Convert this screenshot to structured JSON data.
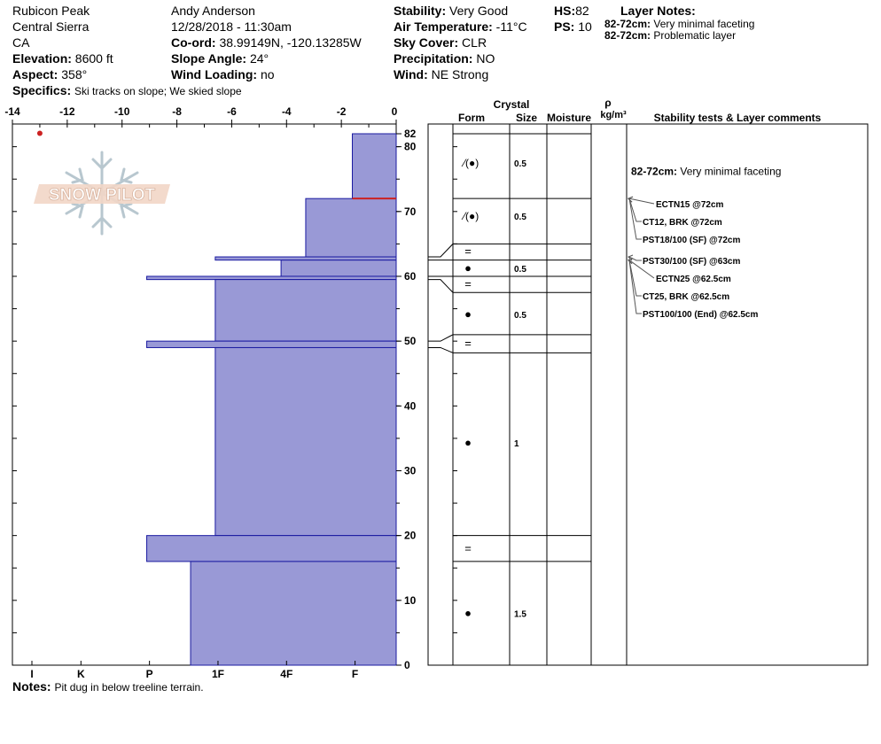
{
  "site": {
    "location": "Rubicon Peak",
    "range": "Central Sierra",
    "state": "CA",
    "elevation_label": "Elevation:",
    "elevation": "8600 ft",
    "aspect_label": "Aspect:",
    "aspect": "358°",
    "specifics_label": "Specifics:",
    "specifics": "Ski tracks on slope; We skied slope"
  },
  "observer": {
    "name": "Andy Anderson",
    "datetime": "12/28/2018 - 11:30am",
    "coord_label": "Co-ord:",
    "coord": "38.99149N, -120.13285W",
    "slope_label": "Slope Angle:",
    "slope": "24°",
    "wind_loading_label": "Wind Loading:",
    "wind_loading": "no"
  },
  "conditions": {
    "stability_label": "Stability:",
    "stability": "Very Good",
    "air_temp_label": "Air Temperature:",
    "air_temp": "-11°C",
    "sky_label": "Sky Cover:",
    "sky": "CLR",
    "precip_label": "Precipitation:",
    "precip": "NO",
    "wind_label": "Wind:",
    "wind": "NE Strong"
  },
  "depths": {
    "hs_label": "HS:",
    "hs": "82",
    "ps_label": "PS:",
    "ps": "10"
  },
  "layer_notes": {
    "title": "Layer Notes:",
    "items": [
      {
        "range": "82-72cm:",
        "text": "Very minimal faceting"
      },
      {
        "range": "82-72cm:",
        "text": "Problematic layer"
      }
    ]
  },
  "notes": {
    "label": "Notes:",
    "text": "Pit dug in below treeline terrain."
  },
  "logo_text": "SNOW PILOT",
  "columns": {
    "crystal": "Crystal",
    "form": "Form",
    "size": "Size",
    "moisture": "Moisture",
    "rho": "ρ",
    "density_unit": "kg/m³",
    "stability_comments": "Stability tests & Layer comments"
  },
  "colors": {
    "hardness_fill": "#9999d6",
    "hardness_stroke": "#1a1aa0",
    "problem_line": "#cc2222",
    "temp_point": "#cc2222"
  },
  "chart_data": {
    "type": "snow_profile",
    "temp_axis": {
      "min": -14,
      "max": 0,
      "ticks": [
        -14,
        -12,
        -10,
        -8,
        -6,
        -4,
        -2,
        0
      ]
    },
    "depth_axis": {
      "min": 0,
      "max": 82,
      "ticks": [
        0,
        10,
        20,
        30,
        40,
        50,
        60,
        70,
        80,
        82
      ]
    },
    "hardness_labels": [
      "I",
      "K",
      "P",
      "1F",
      "4F",
      "F"
    ],
    "hardness_positions": [
      -14,
      -11.5,
      -9,
      -6.5,
      -4,
      -1.5
    ],
    "temperature_points": [
      {
        "depth": 82,
        "temp": -13
      }
    ],
    "hardness_layers": [
      {
        "bottom": 72,
        "top": 82,
        "temp_equiv": -1.6
      },
      {
        "bottom": 63,
        "top": 72,
        "temp_equiv": -3.3
      },
      {
        "bottom": 62.5,
        "top": 63,
        "temp_equiv": -6.6
      },
      {
        "bottom": 60,
        "top": 62.5,
        "temp_equiv": -4.2
      },
      {
        "bottom": 59.5,
        "top": 60,
        "temp_equiv": -9.1
      },
      {
        "bottom": 50,
        "top": 59.5,
        "temp_equiv": -6.6
      },
      {
        "bottom": 49,
        "top": 50,
        "temp_equiv": -9.1
      },
      {
        "bottom": 20,
        "top": 49,
        "temp_equiv": -6.6
      },
      {
        "bottom": 16,
        "top": 20,
        "temp_equiv": -9.1
      },
      {
        "bottom": 0,
        "top": 16,
        "temp_equiv": -7.5
      }
    ],
    "problem_depth": 72,
    "layer_boundaries": [
      82,
      72,
      65,
      62.5,
      60,
      57.5,
      51,
      48.2,
      20,
      16,
      0
    ],
    "grain_rows": [
      {
        "depth": 77.5,
        "form": "⁄(●)",
        "size": "0.5"
      },
      {
        "depth": 69.3,
        "form": "⁄(●)",
        "size": "0.5"
      },
      {
        "depth": 63.8,
        "form": "=",
        "size": ""
      },
      {
        "depth": 61.2,
        "form": "●",
        "size": "0.5"
      },
      {
        "depth": 58.8,
        "form": "=",
        "size": ""
      },
      {
        "depth": 54.1,
        "form": "●",
        "size": "0.5"
      },
      {
        "depth": 49.6,
        "form": "=",
        "size": ""
      },
      {
        "depth": 34.3,
        "form": "●",
        "size": "1"
      },
      {
        "depth": 18.0,
        "form": "=",
        "size": ""
      },
      {
        "depth": 8.0,
        "form": "●",
        "size": "1.5"
      }
    ],
    "layer_comment": {
      "depth": 76.2,
      "range": "82-72cm:",
      "text": "Very minimal faceting"
    },
    "stability_tests": [
      {
        "label": "ECTN15 @72cm",
        "depth": 72
      },
      {
        "label": "CT12, BRK @72cm",
        "depth": 72
      },
      {
        "label": "PST18/100 (SF) @72cm",
        "depth": 72
      },
      {
        "label": "PST30/100 (SF) @63cm",
        "depth": 63
      },
      {
        "label": "ECTN25 @62.5cm",
        "depth": 62.5
      },
      {
        "label": "CT25, BRK @62.5cm",
        "depth": 62.5
      },
      {
        "label": "PST100/100 (End) @62.5cm",
        "depth": 62.5
      }
    ]
  }
}
